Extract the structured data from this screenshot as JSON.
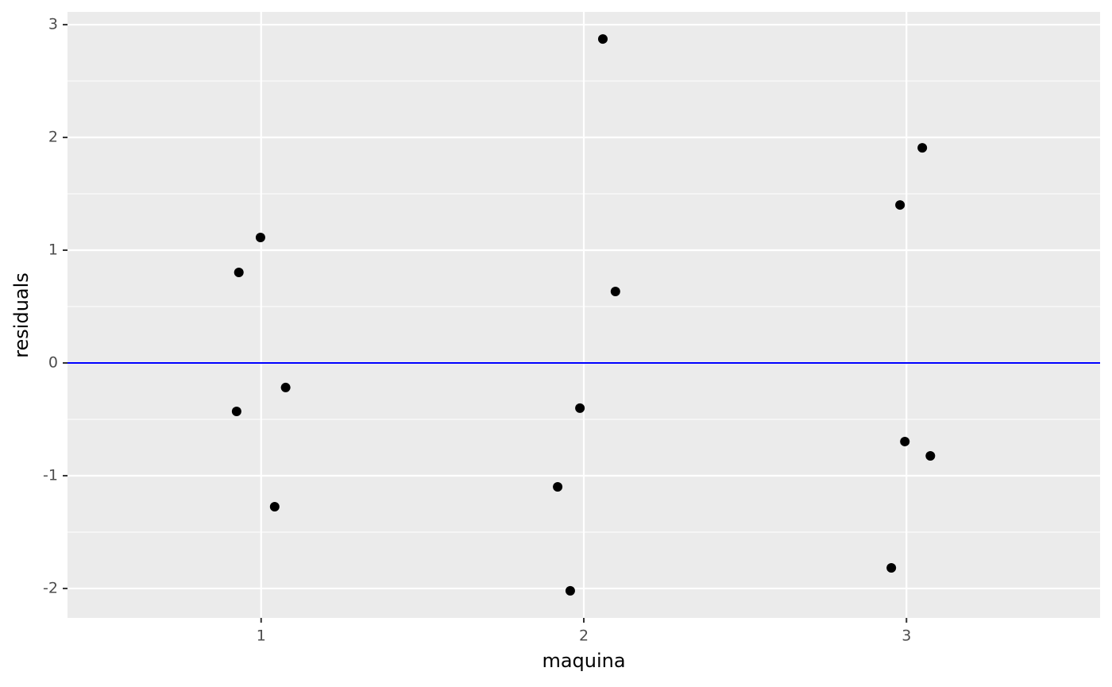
{
  "chart_data": {
    "type": "scatter",
    "x_label": "maquina",
    "y_label": "residuals",
    "series": [
      {
        "name": "residuals",
        "color": "#000000",
        "x": [
          0.931,
          0.998,
          1.076,
          0.924,
          1.042,
          2.059,
          2.098,
          1.988,
          1.919,
          1.958,
          3.049,
          2.98,
          2.995,
          3.074,
          2.953
        ],
        "values": [
          0.803,
          1.113,
          -0.218,
          -0.43,
          -1.275,
          2.873,
          0.634,
          -0.401,
          -1.099,
          -2.021,
          1.908,
          1.401,
          -0.697,
          -0.824,
          -1.817
        ]
      }
    ],
    "hline": {
      "y": 0,
      "color": "#0000ff"
    },
    "xlim": [
      0.4,
      3.6
    ],
    "xticks": [
      1,
      2,
      3
    ],
    "ylim": [
      -2.261,
      3.113
    ],
    "yticks": [
      -2,
      -1,
      0,
      1,
      2,
      3
    ],
    "grid": true,
    "panel_color": "#ebebeb"
  }
}
